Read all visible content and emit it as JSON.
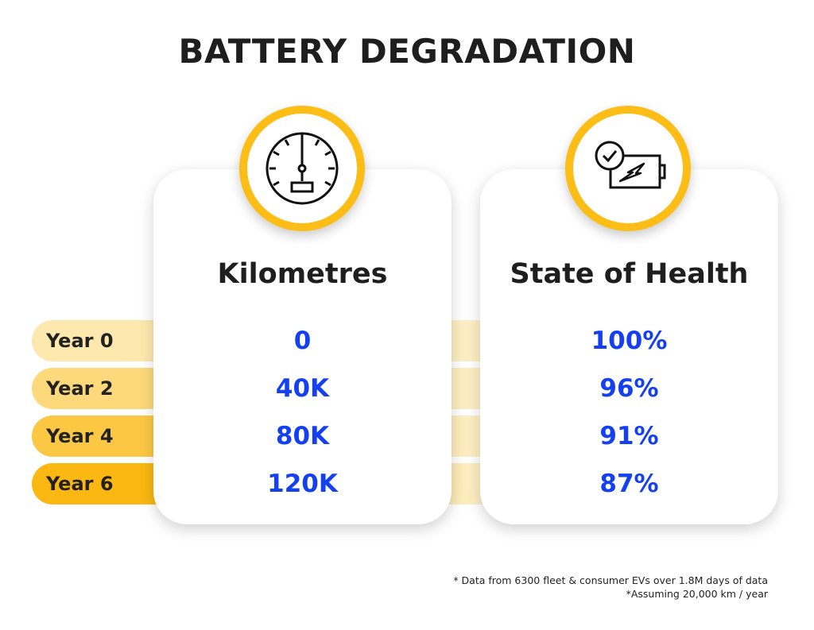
{
  "title": "BATTERY DEGRADATION",
  "columns": [
    {
      "heading": "Kilometres",
      "icon": "speedometer-icon"
    },
    {
      "heading": "State of Health",
      "icon": "battery-health-icon"
    }
  ],
  "rows": [
    {
      "label": "Year 0",
      "kilometres": "0",
      "health": "100%"
    },
    {
      "label": "Year 2",
      "kilometres": "40K",
      "health": "96%"
    },
    {
      "label": "Year 4",
      "kilometres": "80K",
      "health": "91%"
    },
    {
      "label": "Year 6",
      "kilometres": "120K",
      "health": "87%"
    }
  ],
  "footnotes": [
    "* Data from 6300 fleet & consumer EVs over 1.8M days of data",
    "*Assuming 20,000 km / year"
  ],
  "colors": {
    "accent": "#fbbd16",
    "value": "#1540f0",
    "row_shades": [
      "#fde8ad",
      "#fdd97c",
      "#fcc843",
      "#fbb812"
    ]
  },
  "chart_data": {
    "type": "table",
    "title": "BATTERY DEGRADATION",
    "categories": [
      "Year 0",
      "Year 2",
      "Year 4",
      "Year 6"
    ],
    "series": [
      {
        "name": "Kilometres",
        "values": [
          "0",
          "40K",
          "80K",
          "120K"
        ]
      },
      {
        "name": "State of Health",
        "values": [
          "100%",
          "96%",
          "91%",
          "87%"
        ]
      }
    ]
  }
}
